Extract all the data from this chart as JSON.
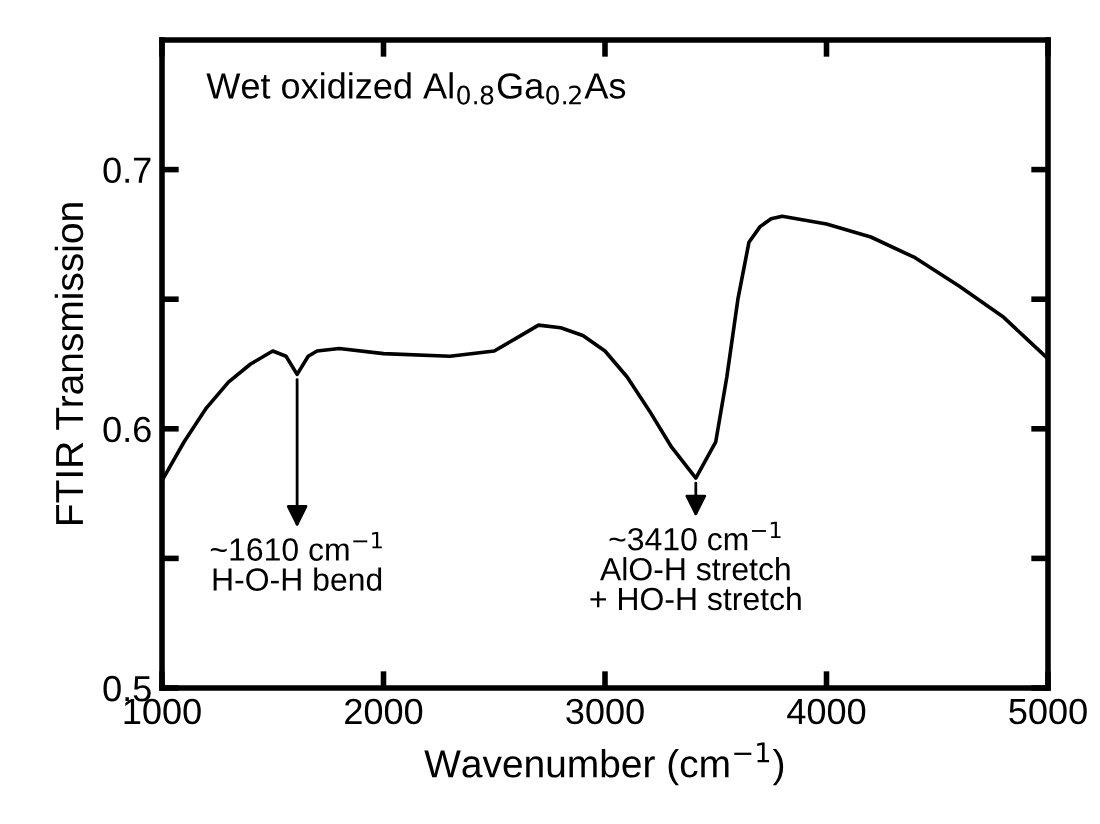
{
  "chart_data": {
    "type": "line",
    "title": "Wet oxidized Al$_{0.8}$Ga$_{0.2}$As",
    "xlabel": "Wavenumber (cm$^{−1}$)",
    "ylabel": "FTIR Transmission",
    "x": [
      1000,
      1100,
      1200,
      1300,
      1400,
      1500,
      1560,
      1610,
      1660,
      1700,
      1800,
      2000,
      2300,
      2500,
      2600,
      2700,
      2800,
      2900,
      3000,
      3100,
      3200,
      3300,
      3410,
      3500,
      3550,
      3600,
      3650,
      3700,
      3750,
      3800,
      4000,
      4200,
      4400,
      4600,
      4800,
      4900,
      5000
    ],
    "series": [
      {
        "color": "#000000",
        "values": [
          0.58,
          0.595,
          0.608,
          0.618,
          0.625,
          0.63,
          0.628,
          0.621,
          0.628,
          0.63,
          0.631,
          0.629,
          0.628,
          0.63,
          0.635,
          0.64,
          0.639,
          0.636,
          0.63,
          0.62,
          0.607,
          0.593,
          0.581,
          0.595,
          0.62,
          0.65,
          0.672,
          0.678,
          0.681,
          0.682,
          0.679,
          0.674,
          0.666,
          0.655,
          0.643,
          0.635,
          0.627
        ]
      }
    ],
    "annotations": [
      {
        "text": "~1610 cm$^{−1}$\nH-O-H bend",
        "x": 1610,
        "y": 0.621
      },
      {
        "text": "~3410 cm$^{−1}$\nAlO-H stretch\n+ HO-H stretch",
        "x": 3410,
        "y": 0.581
      }
    ],
    "xlim": [
      1000,
      5000
    ],
    "xticks": [
      1000,
      2000,
      3000,
      4000,
      5000
    ],
    "ylim": [
      0.5,
      0.75
    ],
    "yticks": [
      0.5,
      {
        "value": 0.55,
        "label": null
      },
      0.6,
      {
        "value": 0.65,
        "label": null
      },
      0.7
    ],
    "grid": false,
    "legend": false,
    "marker": "none",
    "line_style": "solid"
  }
}
